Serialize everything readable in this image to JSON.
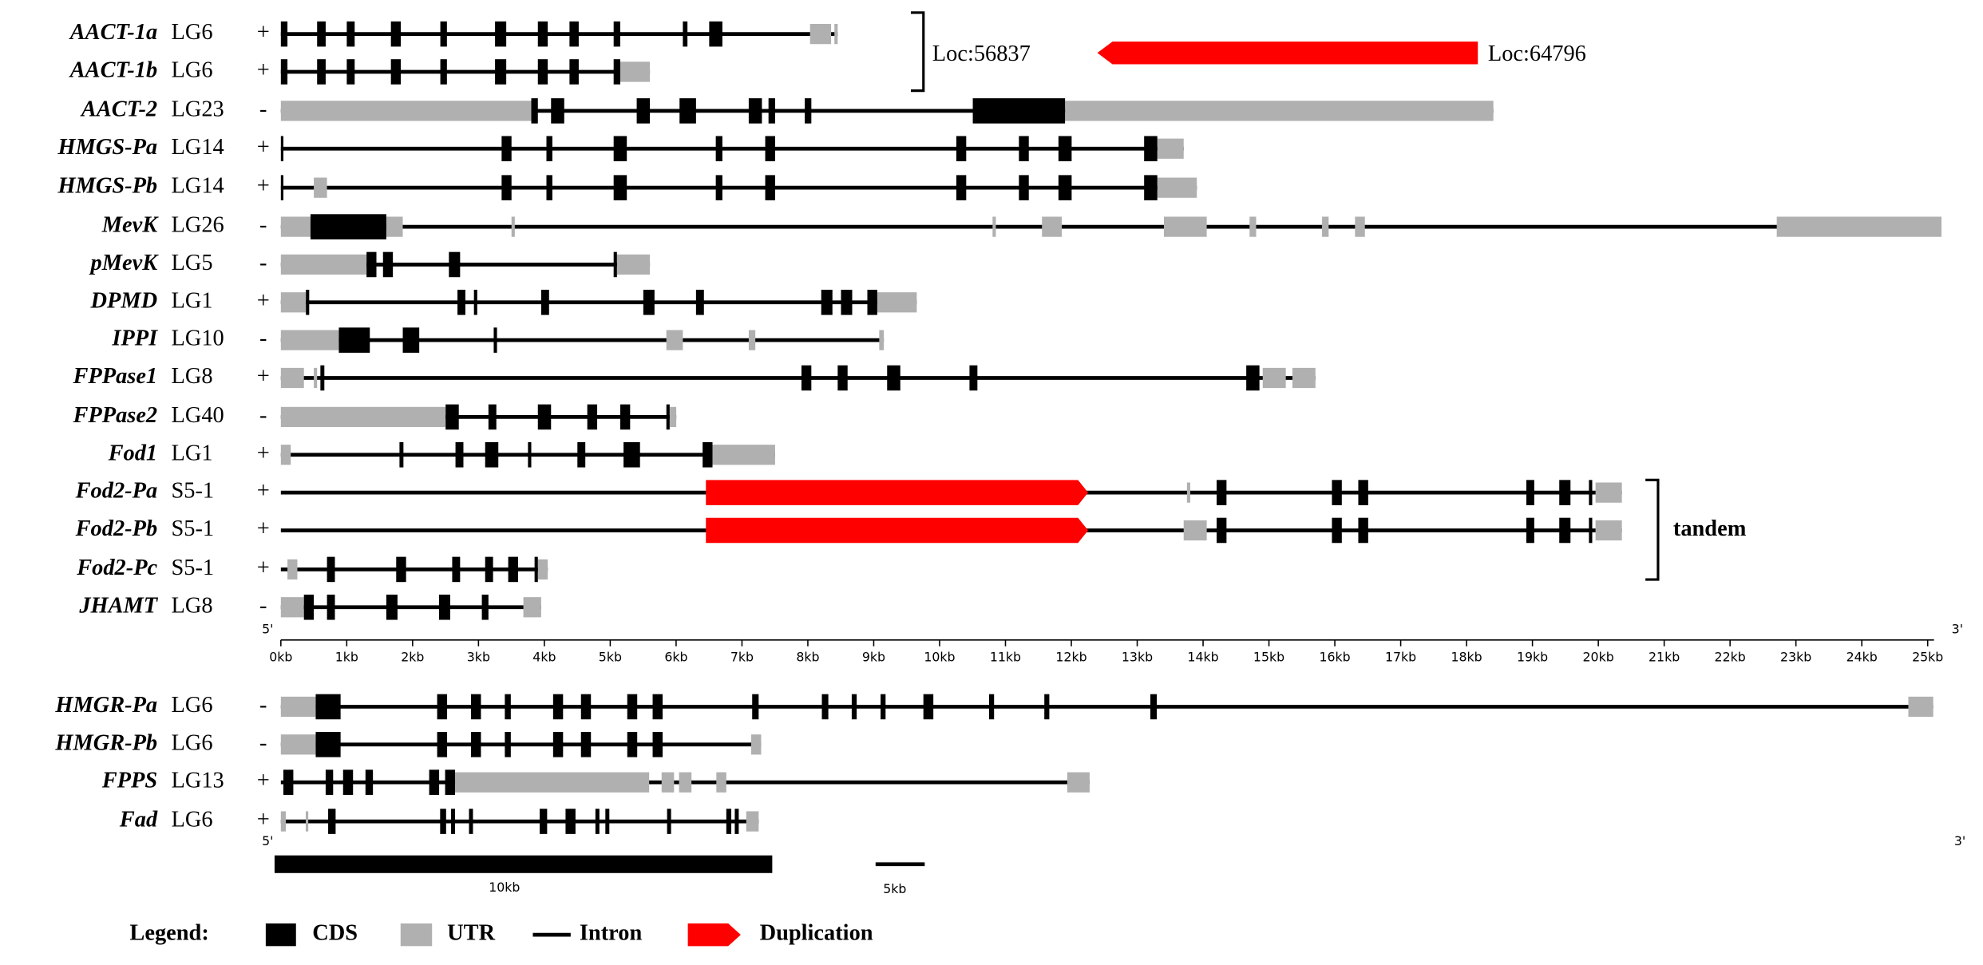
{
  "loci": {
    "start": "Loc:56837",
    "end": "Loc:64796"
  },
  "tandem_label": "tandem",
  "top_panel": {
    "genes": [
      {
        "name": "AACT-1a",
        "group": "LG6",
        "strand": "+",
        "span": [
          0,
          8.45
        ],
        "cds": [
          [
            0,
            0.1
          ],
          [
            0.55,
            0.68
          ],
          [
            1.0,
            1.12
          ],
          [
            1.67,
            1.82
          ],
          [
            2.42,
            2.52
          ],
          [
            3.25,
            3.42
          ],
          [
            3.9,
            4.05
          ],
          [
            4.38,
            4.52
          ],
          [
            5.05,
            5.15
          ],
          [
            6.1,
            6.17
          ],
          [
            6.5,
            6.7
          ]
        ],
        "utr": [
          [
            8.03,
            8.35
          ],
          [
            8.4,
            8.45
          ]
        ]
      },
      {
        "name": "AACT-1b",
        "group": "LG6",
        "strand": "+",
        "span": [
          0,
          5.6
        ],
        "cds": [
          [
            0,
            0.1
          ],
          [
            0.55,
            0.68
          ],
          [
            1.0,
            1.12
          ],
          [
            1.67,
            1.82
          ],
          [
            2.42,
            2.52
          ],
          [
            3.25,
            3.42
          ],
          [
            3.9,
            4.05
          ],
          [
            4.38,
            4.52
          ],
          [
            5.05,
            5.15
          ]
        ],
        "utr": [
          [
            5.15,
            5.6
          ]
        ]
      },
      {
        "name": "AACT-2",
        "group": "LG23",
        "strand": "-",
        "span": [
          0,
          18.4
        ],
        "cds": [
          [
            3.8,
            3.9
          ],
          [
            4.1,
            4.3
          ],
          [
            5.4,
            5.6
          ],
          [
            6.05,
            6.3
          ],
          [
            7.1,
            7.3
          ],
          [
            7.4,
            7.5
          ],
          [
            7.95,
            8.05
          ],
          [
            10.5,
            11.9
          ]
        ],
        "utr": [
          [
            0,
            3.8
          ],
          [
            11.9,
            18.4
          ]
        ]
      },
      {
        "name": "HMGS-Pa",
        "group": "LG14",
        "strand": "+",
        "span": [
          0,
          13.7
        ],
        "cds": [
          [
            0,
            0.03
          ],
          [
            3.35,
            3.5
          ],
          [
            4.03,
            4.12
          ],
          [
            5.05,
            5.25
          ],
          [
            6.6,
            6.7
          ],
          [
            7.35,
            7.5
          ],
          [
            10.25,
            10.4
          ],
          [
            11.2,
            11.35
          ],
          [
            11.8,
            12.0
          ],
          [
            13.1,
            13.3
          ]
        ],
        "utr": [
          [
            13.3,
            13.7
          ]
        ]
      },
      {
        "name": "HMGS-Pb",
        "group": "LG14",
        "strand": "+",
        "span": [
          0,
          13.9
        ],
        "cds": [
          [
            0,
            0.03
          ],
          [
            3.35,
            3.5
          ],
          [
            4.03,
            4.12
          ],
          [
            5.05,
            5.25
          ],
          [
            6.6,
            6.7
          ],
          [
            7.35,
            7.5
          ],
          [
            10.25,
            10.4
          ],
          [
            11.2,
            11.35
          ],
          [
            11.8,
            12.0
          ],
          [
            13.1,
            13.3
          ]
        ],
        "utr": [
          [
            0.5,
            0.7
          ],
          [
            13.3,
            13.9
          ]
        ]
      },
      {
        "name": "MevK",
        "group": "LG26",
        "strand": "-",
        "span": [
          0,
          25.2
        ],
        "cds": [
          [
            0.45,
            1.6
          ]
        ],
        "utr": [
          [
            0,
            0.45
          ],
          [
            1.6,
            1.85
          ],
          [
            3.5,
            3.55
          ],
          [
            10.8,
            10.85
          ],
          [
            11.55,
            11.85
          ],
          [
            13.4,
            14.05
          ],
          [
            14.7,
            14.8
          ],
          [
            15.8,
            15.9
          ],
          [
            16.3,
            16.45
          ],
          [
            22.7,
            25.2
          ]
        ]
      },
      {
        "name": "pMevK",
        "group": "LG5",
        "strand": "-",
        "span": [
          0,
          5.6
        ],
        "cds": [
          [
            1.3,
            1.45
          ],
          [
            1.55,
            1.7
          ],
          [
            2.55,
            2.72
          ],
          [
            5.05,
            5.1
          ]
        ],
        "utr": [
          [
            0,
            1.3
          ],
          [
            5.1,
            5.6
          ]
        ]
      },
      {
        "name": "DPMD",
        "group": "LG1",
        "strand": "+",
        "span": [
          0,
          9.65
        ],
        "cds": [
          [
            0.38,
            0.43
          ],
          [
            2.68,
            2.8
          ],
          [
            2.93,
            2.98
          ],
          [
            3.95,
            4.07
          ],
          [
            5.5,
            5.67
          ],
          [
            6.3,
            6.42
          ],
          [
            8.2,
            8.37
          ],
          [
            8.5,
            8.67
          ],
          [
            8.9,
            9.05
          ]
        ],
        "utr": [
          [
            0,
            0.38
          ],
          [
            9.05,
            9.65
          ]
        ]
      },
      {
        "name": "IPPI",
        "group": "LG10",
        "strand": "-",
        "span": [
          0,
          9.15
        ],
        "cds": [
          [
            0.88,
            1.35
          ],
          [
            1.85,
            2.1
          ],
          [
            3.23,
            3.28
          ]
        ],
        "utr": [
          [
            0,
            0.88
          ],
          [
            5.85,
            6.1
          ],
          [
            7.1,
            7.2
          ],
          [
            9.08,
            9.15
          ]
        ]
      },
      {
        "name": "FPPase1",
        "group": "LG8",
        "strand": "+",
        "span": [
          0,
          15.7
        ],
        "cds": [
          [
            0.6,
            0.66
          ],
          [
            7.9,
            8.05
          ],
          [
            8.45,
            8.6
          ],
          [
            9.2,
            9.4
          ],
          [
            10.45,
            10.57
          ],
          [
            14.65,
            14.85
          ]
        ],
        "utr": [
          [
            0,
            0.35
          ],
          [
            0.5,
            0.55
          ],
          [
            14.9,
            15.25
          ],
          [
            15.35,
            15.7
          ]
        ]
      },
      {
        "name": "FPPase2",
        "group": "LG40",
        "strand": "-",
        "span": [
          0,
          6.0
        ],
        "cds": [
          [
            2.5,
            2.7
          ],
          [
            3.15,
            3.27
          ],
          [
            3.9,
            4.1
          ],
          [
            4.65,
            4.8
          ],
          [
            5.15,
            5.3
          ],
          [
            5.85,
            5.9
          ]
        ],
        "utr": [
          [
            0,
            2.5
          ],
          [
            5.9,
            6.0
          ]
        ]
      },
      {
        "name": "Fod1",
        "group": "LG1",
        "strand": "+",
        "span": [
          0,
          7.5
        ],
        "cds": [
          [
            1.8,
            1.86
          ],
          [
            2.65,
            2.77
          ],
          [
            3.1,
            3.3
          ],
          [
            3.75,
            3.8
          ],
          [
            4.5,
            4.62
          ],
          [
            5.2,
            5.45
          ],
          [
            6.4,
            6.55
          ]
        ],
        "utr": [
          [
            0,
            0.15
          ],
          [
            6.55,
            7.5
          ]
        ]
      },
      {
        "name": "Fod2-Pa",
        "group": "S5-1",
        "strand": "+",
        "span": [
          0,
          20.35
        ],
        "duplication": [
          6.45,
          12.25
        ],
        "cds": [
          [
            14.2,
            14.35
          ],
          [
            15.95,
            16.1
          ],
          [
            16.35,
            16.5
          ],
          [
            18.9,
            19.02
          ],
          [
            19.4,
            19.57
          ],
          [
            19.85,
            19.9
          ]
        ],
        "utr": [
          [
            13.75,
            13.8
          ],
          [
            19.95,
            20.35
          ]
        ]
      },
      {
        "name": "Fod2-Pb",
        "group": "S5-1",
        "strand": "+",
        "span": [
          0,
          20.35
        ],
        "duplication": [
          6.45,
          12.25
        ],
        "cds": [
          [
            14.2,
            14.35
          ],
          [
            15.95,
            16.1
          ],
          [
            16.35,
            16.5
          ],
          [
            18.9,
            19.02
          ],
          [
            19.4,
            19.57
          ],
          [
            19.85,
            19.9
          ]
        ],
        "utr": [
          [
            13.7,
            14.05
          ],
          [
            19.95,
            20.35
          ]
        ]
      },
      {
        "name": "Fod2-Pc",
        "group": "S5-1",
        "strand": "+",
        "span": [
          0,
          4.05
        ],
        "cds": [
          [
            0.7,
            0.82
          ],
          [
            1.75,
            1.9
          ],
          [
            2.6,
            2.72
          ],
          [
            3.1,
            3.22
          ],
          [
            3.45,
            3.6
          ],
          [
            3.85,
            3.9
          ]
        ],
        "utr": [
          [
            0.1,
            0.25
          ],
          [
            3.9,
            4.05
          ]
        ]
      },
      {
        "name": "JHAMT",
        "group": "LG8",
        "strand": "-",
        "span": [
          0,
          3.95
        ],
        "cds": [
          [
            0.35,
            0.5
          ],
          [
            0.7,
            0.82
          ],
          [
            1.6,
            1.77
          ],
          [
            2.4,
            2.57
          ],
          [
            3.05,
            3.15
          ]
        ],
        "utr": [
          [
            0,
            0.35
          ],
          [
            3.68,
            3.95
          ]
        ]
      }
    ],
    "axis": {
      "xlim": [
        0,
        25
      ],
      "five_prime": "5'",
      "three_prime": "3'",
      "ticks": [
        {
          "value": 0,
          "label": "0kb"
        },
        {
          "value": 1,
          "label": "1kb"
        },
        {
          "value": 2,
          "label": "2kb"
        },
        {
          "value": 3,
          "label": "3kb"
        },
        {
          "value": 4,
          "label": "4kb"
        },
        {
          "value": 5,
          "label": "5kb"
        },
        {
          "value": 6,
          "label": "6kb"
        },
        {
          "value": 7,
          "label": "7kb"
        },
        {
          "value": 8,
          "label": "8kb"
        },
        {
          "value": 9,
          "label": "9kb"
        },
        {
          "value": 10,
          "label": "10kb"
        },
        {
          "value": 11,
          "label": "11kb"
        },
        {
          "value": 12,
          "label": "12kb"
        },
        {
          "value": 13,
          "label": "13kb"
        },
        {
          "value": 14,
          "label": "14kb"
        },
        {
          "value": 15,
          "label": "15kb"
        },
        {
          "value": 16,
          "label": "16kb"
        },
        {
          "value": 17,
          "label": "17kb"
        },
        {
          "value": 18,
          "label": "18kb"
        },
        {
          "value": 19,
          "label": "19kb"
        },
        {
          "value": 20,
          "label": "20kb"
        },
        {
          "value": 21,
          "label": "21kb"
        },
        {
          "value": 22,
          "label": "22kb"
        },
        {
          "value": 23,
          "label": "23kb"
        },
        {
          "value": 24,
          "label": "24kb"
        },
        {
          "value": 25,
          "label": "25kb"
        }
      ]
    }
  },
  "bottom_panel": {
    "genes": [
      {
        "name": "HMGR-Pa",
        "group": "LG6",
        "strand": "-",
        "span": [
          0,
          33.2
        ],
        "cds": [
          [
            0.7,
            1.2
          ],
          [
            3.14,
            3.34
          ],
          [
            3.82,
            4.02
          ],
          [
            4.5,
            4.62
          ],
          [
            5.47,
            5.67
          ],
          [
            6.03,
            6.23
          ],
          [
            6.96,
            7.16
          ],
          [
            7.47,
            7.67
          ],
          [
            9.47,
            9.6
          ],
          [
            10.87,
            11.0
          ],
          [
            11.47,
            11.57
          ],
          [
            12.05,
            12.15
          ],
          [
            12.91,
            13.11
          ],
          [
            14.23,
            14.33
          ],
          [
            15.34,
            15.44
          ],
          [
            17.47,
            17.6
          ]
        ],
        "utr": [
          [
            0,
            0.7
          ],
          [
            32.7,
            33.2
          ]
        ]
      },
      {
        "name": "HMGR-Pb",
        "group": "LG6",
        "strand": "-",
        "span": [
          0,
          9.65
        ],
        "cds": [
          [
            0.7,
            1.2
          ],
          [
            3.14,
            3.34
          ],
          [
            3.82,
            4.02
          ],
          [
            4.5,
            4.62
          ],
          [
            5.47,
            5.67
          ],
          [
            6.03,
            6.23
          ],
          [
            6.96,
            7.16
          ],
          [
            7.47,
            7.67
          ]
        ],
        "utr": [
          [
            0,
            0.7
          ],
          [
            9.45,
            9.65
          ]
        ]
      },
      {
        "name": "FPPS",
        "group": "LG13",
        "strand": "+",
        "span": [
          0,
          16.25
        ],
        "cds": [
          [
            0.05,
            0.25
          ],
          [
            0.9,
            1.05
          ],
          [
            1.25,
            1.45
          ],
          [
            1.7,
            1.85
          ],
          [
            2.98,
            3.18
          ],
          [
            3.3,
            3.5
          ]
        ],
        "utr": [
          [
            3.5,
            7.4
          ],
          [
            7.65,
            7.9
          ],
          [
            8.0,
            8.25
          ],
          [
            8.75,
            8.95
          ],
          [
            15.8,
            16.25
          ]
        ]
      },
      {
        "name": "Fad",
        "group": "LG6",
        "strand": "+",
        "span": [
          0,
          9.6
        ],
        "cds": [
          [
            0.95,
            1.1
          ],
          [
            3.2,
            3.32
          ],
          [
            3.42,
            3.5
          ],
          [
            3.78,
            3.86
          ],
          [
            5.2,
            5.35
          ],
          [
            5.72,
            5.92
          ],
          [
            6.32,
            6.4
          ],
          [
            6.52,
            6.6
          ],
          [
            7.76,
            7.84
          ],
          [
            8.95,
            9.05
          ],
          [
            9.12,
            9.2
          ]
        ],
        "utr": [
          [
            0,
            0.1
          ],
          [
            0.5,
            0.55
          ],
          [
            9.35,
            9.6
          ]
        ]
      }
    ],
    "five_prime": "5'",
    "three_prime": "3'",
    "scale_bars": [
      "10kb",
      "5kb"
    ]
  },
  "legend": {
    "title": "Legend:",
    "cds": "CDS",
    "utr": "UTR",
    "intron": "Intron",
    "duplication": "Duplication"
  }
}
